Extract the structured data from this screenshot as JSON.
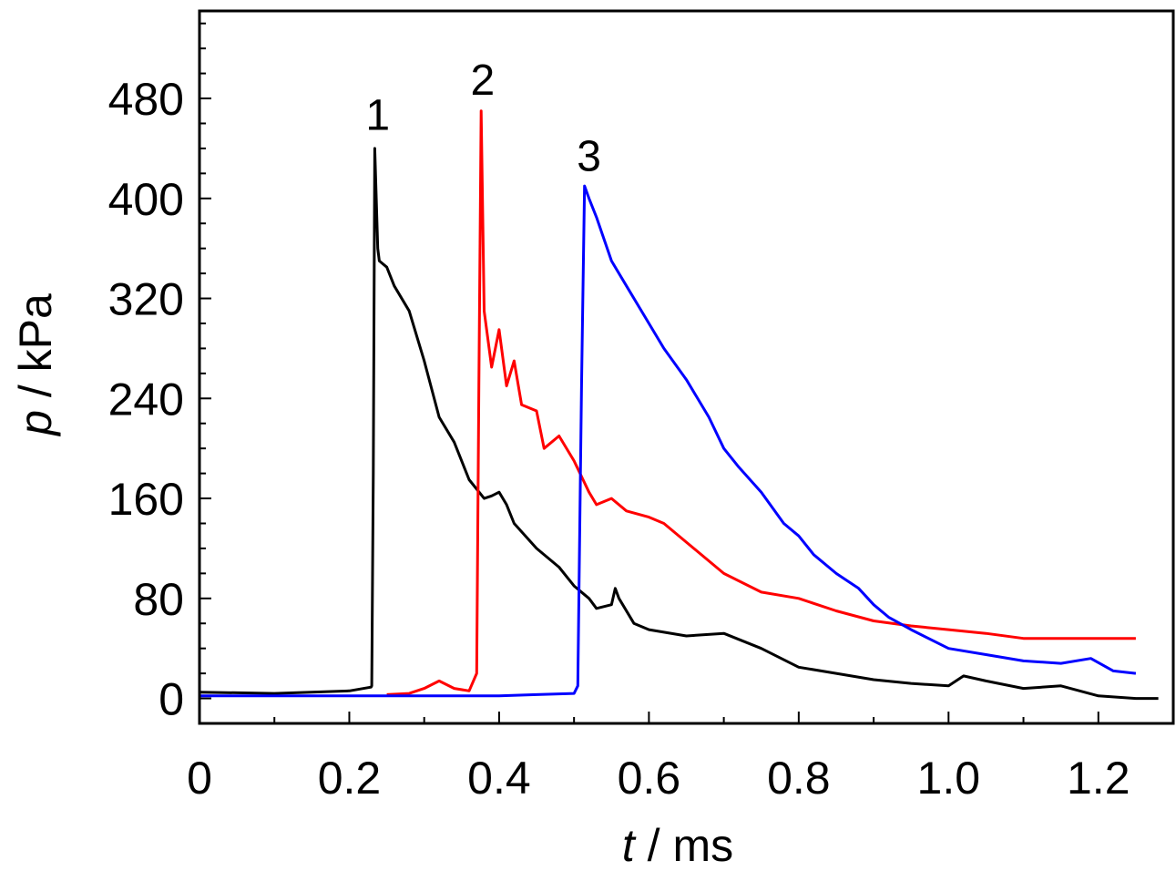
{
  "chart_data": {
    "type": "line",
    "xlabel": {
      "var": "t",
      "unit": " / ms"
    },
    "ylabel": {
      "var": "p",
      "unit": " / kPa"
    },
    "xlim": [
      0,
      1.3
    ],
    "ylim": [
      -20,
      550
    ],
    "xticks": [
      0,
      0.2,
      0.4,
      0.6,
      0.8,
      1.0,
      1.2
    ],
    "xtick_labels": [
      "0",
      "0.2",
      "0.4",
      "0.6",
      "0.8",
      "1.0",
      "1.2"
    ],
    "yticks": [
      0,
      80,
      160,
      240,
      320,
      400,
      480
    ],
    "ytick_labels": [
      "0",
      "80",
      "160",
      "240",
      "320",
      "400",
      "480"
    ],
    "grid": false,
    "legend": "none",
    "series": [
      {
        "label": "1",
        "color": "#000000",
        "label_at": [
          0.238,
          455
        ],
        "points": [
          [
            0,
            5
          ],
          [
            0.1,
            4
          ],
          [
            0.2,
            6
          ],
          [
            0.229,
            9
          ],
          [
            0.23,
            10
          ],
          [
            0.232,
            180
          ],
          [
            0.234,
            440
          ],
          [
            0.238,
            360
          ],
          [
            0.24,
            350
          ],
          [
            0.25,
            345
          ],
          [
            0.26,
            330
          ],
          [
            0.28,
            310
          ],
          [
            0.3,
            270
          ],
          [
            0.32,
            225
          ],
          [
            0.34,
            205
          ],
          [
            0.36,
            175
          ],
          [
            0.38,
            160
          ],
          [
            0.39,
            162
          ],
          [
            0.4,
            165
          ],
          [
            0.41,
            155
          ],
          [
            0.42,
            140
          ],
          [
            0.45,
            120
          ],
          [
            0.48,
            105
          ],
          [
            0.5,
            90
          ],
          [
            0.52,
            80
          ],
          [
            0.53,
            72
          ],
          [
            0.55,
            75
          ],
          [
            0.555,
            88
          ],
          [
            0.56,
            80
          ],
          [
            0.58,
            60
          ],
          [
            0.6,
            55
          ],
          [
            0.65,
            50
          ],
          [
            0.7,
            52
          ],
          [
            0.75,
            40
          ],
          [
            0.8,
            25
          ],
          [
            0.85,
            20
          ],
          [
            0.9,
            15
          ],
          [
            0.95,
            12
          ],
          [
            1.0,
            10
          ],
          [
            1.02,
            18
          ],
          [
            1.05,
            14
          ],
          [
            1.1,
            8
          ],
          [
            1.15,
            10
          ],
          [
            1.2,
            2
          ],
          [
            1.25,
            0
          ],
          [
            1.28,
            0
          ]
        ]
      },
      {
        "label": "2",
        "color": "#ff0000",
        "label_at": [
          0.378,
          483
        ],
        "points": [
          [
            0.25,
            3
          ],
          [
            0.28,
            4
          ],
          [
            0.3,
            8
          ],
          [
            0.32,
            14
          ],
          [
            0.34,
            8
          ],
          [
            0.36,
            6
          ],
          [
            0.37,
            20
          ],
          [
            0.373,
            250
          ],
          [
            0.376,
            470
          ],
          [
            0.38,
            310
          ],
          [
            0.39,
            265
          ],
          [
            0.4,
            295
          ],
          [
            0.41,
            250
          ],
          [
            0.42,
            270
          ],
          [
            0.43,
            235
          ],
          [
            0.45,
            230
          ],
          [
            0.46,
            200
          ],
          [
            0.48,
            210
          ],
          [
            0.5,
            190
          ],
          [
            0.52,
            165
          ],
          [
            0.53,
            155
          ],
          [
            0.55,
            160
          ],
          [
            0.57,
            150
          ],
          [
            0.6,
            145
          ],
          [
            0.62,
            140
          ],
          [
            0.65,
            125
          ],
          [
            0.7,
            100
          ],
          [
            0.75,
            85
          ],
          [
            0.8,
            80
          ],
          [
            0.85,
            70
          ],
          [
            0.9,
            62
          ],
          [
            0.95,
            58
          ],
          [
            1.0,
            55
          ],
          [
            1.05,
            52
          ],
          [
            1.1,
            48
          ],
          [
            1.15,
            48
          ],
          [
            1.2,
            48
          ],
          [
            1.25,
            48
          ]
        ]
      },
      {
        "label": "3",
        "color": "#0000ff",
        "label_at": [
          0.52,
          422
        ],
        "points": [
          [
            0,
            2
          ],
          [
            0.1,
            2
          ],
          [
            0.2,
            2
          ],
          [
            0.3,
            2
          ],
          [
            0.4,
            2
          ],
          [
            0.45,
            3
          ],
          [
            0.5,
            4
          ],
          [
            0.505,
            10
          ],
          [
            0.51,
            250
          ],
          [
            0.514,
            410
          ],
          [
            0.52,
            400
          ],
          [
            0.53,
            385
          ],
          [
            0.55,
            350
          ],
          [
            0.57,
            330
          ],
          [
            0.6,
            300
          ],
          [
            0.62,
            280
          ],
          [
            0.65,
            255
          ],
          [
            0.68,
            225
          ],
          [
            0.7,
            200
          ],
          [
            0.72,
            185
          ],
          [
            0.75,
            165
          ],
          [
            0.78,
            140
          ],
          [
            0.8,
            130
          ],
          [
            0.82,
            115
          ],
          [
            0.85,
            100
          ],
          [
            0.88,
            88
          ],
          [
            0.9,
            75
          ],
          [
            0.92,
            65
          ],
          [
            0.95,
            55
          ],
          [
            1.0,
            40
          ],
          [
            1.05,
            35
          ],
          [
            1.1,
            30
          ],
          [
            1.15,
            28
          ],
          [
            1.19,
            32
          ],
          [
            1.22,
            22
          ],
          [
            1.25,
            20
          ]
        ]
      }
    ]
  }
}
